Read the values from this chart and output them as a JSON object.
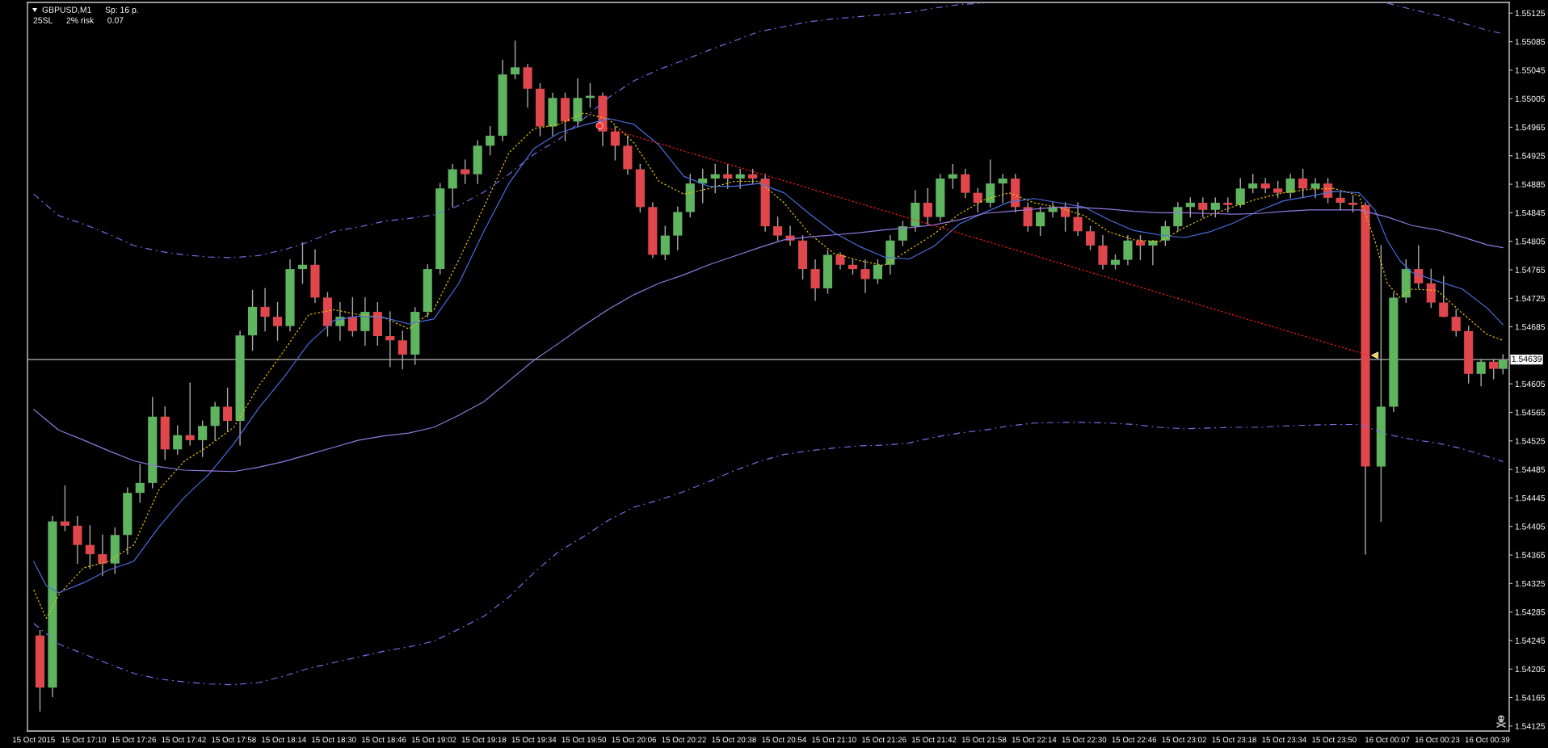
{
  "chart_data": {
    "type": "candlestick",
    "title": "GBPUSD,M1",
    "annotations": [
      "Sp: 16 p.",
      "25SL",
      "2% risk",
      "0.07"
    ],
    "color": "#a8a8a8",
    "x": [
      "2015-10-15T16:56",
      "2015-10-15T17:00",
      "2015-10-15T17:04",
      "2015-10-15T17:08",
      "2015-10-15T17:12",
      "2015-10-15T17:16",
      "2015-10-15T17:20",
      "2015-10-15T17:24",
      "2015-10-15T17:28",
      "2015-10-15T17:32",
      "2015-10-15T17:36",
      "2015-10-15T17:40",
      "2015-10-15T17:44",
      "2015-10-15T17:48",
      "2015-10-15T17:52",
      "2015-10-15T17:56",
      "2015-10-15T18:00",
      "2015-10-15T18:04",
      "2015-10-15T18:08",
      "2015-10-15T18:12",
      "2015-10-15T18:16",
      "2015-10-15T18:20",
      "2015-10-15T18:24",
      "2015-10-15T18:28",
      "2015-10-15T18:32",
      "2015-10-15T18:36",
      "2015-10-15T18:40",
      "2015-10-15T18:44",
      "2015-10-15T18:48",
      "2015-10-15T18:52",
      "2015-10-15T18:56",
      "2015-10-15T19:00",
      "2015-10-15T19:04",
      "2015-10-15T19:08",
      "2015-10-15T19:12",
      "2015-10-15T19:16",
      "2015-10-15T19:20",
      "2015-10-15T19:24",
      "2015-10-15T19:28",
      "2015-10-15T19:32",
      "2015-10-15T19:36",
      "2015-10-15T19:40",
      "2015-10-15T19:44",
      "2015-10-15T19:48",
      "2015-10-15T19:52",
      "2015-10-15T19:56",
      "2015-10-15T20:00",
      "2015-10-15T20:04",
      "2015-10-15T20:08",
      "2015-10-15T20:12",
      "2015-10-15T20:16",
      "2015-10-15T20:20",
      "2015-10-15T20:24",
      "2015-10-15T20:28",
      "2015-10-15T20:32",
      "2015-10-15T20:36",
      "2015-10-15T20:40",
      "2015-10-15T20:44",
      "2015-10-15T20:48",
      "2015-10-15T20:52",
      "2015-10-15T20:56",
      "2015-10-15T21:00",
      "2015-10-15T21:04",
      "2015-10-15T21:08",
      "2015-10-15T21:12",
      "2015-10-15T21:16",
      "2015-10-15T21:20",
      "2015-10-15T21:24",
      "2015-10-15T21:28",
      "2015-10-15T21:32",
      "2015-10-15T21:36",
      "2015-10-15T21:40",
      "2015-10-15T21:44",
      "2015-10-15T21:48",
      "2015-10-15T21:52",
      "2015-10-15T21:56",
      "2015-10-15T22:00",
      "2015-10-15T22:04",
      "2015-10-15T22:08",
      "2015-10-15T22:12",
      "2015-10-15T22:16",
      "2015-10-15T22:20",
      "2015-10-15T22:24",
      "2015-10-15T22:28",
      "2015-10-15T22:32",
      "2015-10-15T22:36",
      "2015-10-15T22:40",
      "2015-10-15T22:44",
      "2015-10-15T22:48",
      "2015-10-15T22:52",
      "2015-10-15T22:56",
      "2015-10-15T23:00",
      "2015-10-15T23:04",
      "2015-10-15T23:08",
      "2015-10-15T23:12",
      "2015-10-15T23:16",
      "2015-10-15T23:20",
      "2015-10-15T23:24",
      "2015-10-15T23:28",
      "2015-10-15T23:32",
      "2015-10-15T23:36",
      "2015-10-15T23:40",
      "2015-10-15T23:44",
      "2015-10-15T23:48",
      "2015-10-15T23:52",
      "2015-10-15T23:56",
      "2015-10-16T00:00",
      "2015-10-16T00:05",
      "2015-10-16T00:09",
      "2015-10-16T00:13",
      "2015-10-16T00:17",
      "2015-10-16T00:21",
      "2015-10-16T00:25",
      "2015-10-16T00:29",
      "2015-10-16T00:33",
      "2015-10-16T00:37",
      "2015-10-16T00:41",
      "2015-10-16T00:44"
    ],
    "ohlc": [
      [
        1.54252,
        1.54259,
        1.54146,
        1.54179
      ],
      [
        1.54179,
        1.54419,
        1.54166,
        1.54412
      ],
      [
        1.54412,
        1.54462,
        1.54399,
        1.54406
      ],
      [
        1.54406,
        1.54419,
        1.54353,
        1.54379
      ],
      [
        1.54379,
        1.54406,
        1.54346,
        1.54366
      ],
      [
        1.54366,
        1.54393,
        1.54336,
        1.54353
      ],
      [
        1.54353,
        1.54403,
        1.54339,
        1.54393
      ],
      [
        1.54393,
        1.54459,
        1.54366,
        1.54452
      ],
      [
        1.54452,
        1.54492,
        1.54439,
        1.54466
      ],
      [
        1.54466,
        1.54586,
        1.54459,
        1.54559
      ],
      [
        1.54559,
        1.54573,
        1.54499,
        1.54513
      ],
      [
        1.54513,
        1.54546,
        1.54506,
        1.54533
      ],
      [
        1.54533,
        1.54606,
        1.54519,
        1.54526
      ],
      [
        1.54526,
        1.54553,
        1.54503,
        1.54546
      ],
      [
        1.54546,
        1.54579,
        1.54526,
        1.54573
      ],
      [
        1.54573,
        1.54599,
        1.54539,
        1.54553
      ],
      [
        1.54553,
        1.54679,
        1.54519,
        1.54673
      ],
      [
        1.54673,
        1.54736,
        1.54652,
        1.54713
      ],
      [
        1.54713,
        1.54739,
        1.54679,
        1.54699
      ],
      [
        1.54699,
        1.54719,
        1.54666,
        1.54686
      ],
      [
        1.54686,
        1.54779,
        1.54679,
        1.54766
      ],
      [
        1.54766,
        1.54803,
        1.54746,
        1.54772
      ],
      [
        1.54772,
        1.54793,
        1.54719,
        1.54726
      ],
      [
        1.54726,
        1.54733,
        1.54672,
        1.54686
      ],
      [
        1.54686,
        1.54719,
        1.54666,
        1.54699
      ],
      [
        1.54699,
        1.54726,
        1.54672,
        1.54679
      ],
      [
        1.54679,
        1.54726,
        1.54659,
        1.54706
      ],
      [
        1.54706,
        1.54719,
        1.54659,
        1.54672
      ],
      [
        1.54672,
        1.54706,
        1.54629,
        1.54666
      ],
      [
        1.54666,
        1.54679,
        1.54626,
        1.54646
      ],
      [
        1.54646,
        1.54712,
        1.54632,
        1.54706
      ],
      [
        1.54706,
        1.54772,
        1.54699,
        1.54766
      ],
      [
        1.54766,
        1.54886,
        1.54759,
        1.54879
      ],
      [
        1.54879,
        1.54913,
        1.54853,
        1.54906
      ],
      [
        1.54906,
        1.54919,
        1.54886,
        1.54899
      ],
      [
        1.54899,
        1.54946,
        1.54886,
        1.54939
      ],
      [
        1.54939,
        1.54966,
        1.54926,
        1.54953
      ],
      [
        1.54953,
        1.55059,
        1.54946,
        1.55039
      ],
      [
        1.55039,
        1.55086,
        1.55033,
        1.55049
      ],
      [
        1.55049,
        1.55053,
        1.54993,
        1.55019
      ],
      [
        1.55019,
        1.55026,
        1.54953,
        1.54966
      ],
      [
        1.54966,
        1.55013,
        1.54953,
        1.55006
      ],
      [
        1.55006,
        1.55013,
        1.54946,
        1.54973
      ],
      [
        1.54973,
        1.55033,
        1.54966,
        1.55006
      ],
      [
        1.55006,
        1.55026,
        1.54993,
        1.55009
      ],
      [
        1.55009,
        1.55013,
        1.54939,
        1.54959
      ],
      [
        1.54959,
        1.54966,
        1.54919,
        1.54939
      ],
      [
        1.54939,
        1.54953,
        1.54899,
        1.54906
      ],
      [
        1.54906,
        1.54913,
        1.54846,
        1.54853
      ],
      [
        1.54853,
        1.54859,
        1.54782,
        1.54786
      ],
      [
        1.54786,
        1.54826,
        1.54779,
        1.54813
      ],
      [
        1.54813,
        1.54853,
        1.54793,
        1.54846
      ],
      [
        1.54846,
        1.54899,
        1.54839,
        1.54886
      ],
      [
        1.54886,
        1.54906,
        1.54859,
        1.54893
      ],
      [
        1.54893,
        1.54913,
        1.54873,
        1.54899
      ],
      [
        1.54899,
        1.54913,
        1.54879,
        1.54893
      ],
      [
        1.54893,
        1.54906,
        1.54879,
        1.54899
      ],
      [
        1.54899,
        1.54906,
        1.54886,
        1.54893
      ],
      [
        1.54893,
        1.54899,
        1.54819,
        1.54826
      ],
      [
        1.54826,
        1.54839,
        1.54806,
        1.54813
      ],
      [
        1.54813,
        1.54826,
        1.54799,
        1.54806
      ],
      [
        1.54806,
        1.54813,
        1.54752,
        1.54766
      ],
      [
        1.54766,
        1.54779,
        1.54722,
        1.54739
      ],
      [
        1.54739,
        1.54792,
        1.54732,
        1.54786
      ],
      [
        1.54786,
        1.54789,
        1.54766,
        1.54772
      ],
      [
        1.54772,
        1.54779,
        1.54759,
        1.54766
      ],
      [
        1.54766,
        1.54779,
        1.54733,
        1.54752
      ],
      [
        1.54752,
        1.54779,
        1.54746,
        1.54772
      ],
      [
        1.54772,
        1.54813,
        1.54759,
        1.54806
      ],
      [
        1.54806,
        1.54833,
        1.54799,
        1.54826
      ],
      [
        1.54826,
        1.54876,
        1.54819,
        1.54859
      ],
      [
        1.54859,
        1.54879,
        1.54829,
        1.54839
      ],
      [
        1.54839,
        1.54899,
        1.54833,
        1.54893
      ],
      [
        1.54893,
        1.54913,
        1.54879,
        1.54899
      ],
      [
        1.54899,
        1.54906,
        1.54866,
        1.54873
      ],
      [
        1.54873,
        1.54879,
        1.54846,
        1.54859
      ],
      [
        1.54859,
        1.54919,
        1.54853,
        1.54886
      ],
      [
        1.54886,
        1.54899,
        1.54859,
        1.54893
      ],
      [
        1.54893,
        1.54899,
        1.54846,
        1.54853
      ],
      [
        1.54853,
        1.54859,
        1.54819,
        1.54826
      ],
      [
        1.54826,
        1.54853,
        1.54813,
        1.54846
      ],
      [
        1.54846,
        1.54859,
        1.54839,
        1.54853
      ],
      [
        1.54853,
        1.54859,
        1.54819,
        1.54839
      ],
      [
        1.54839,
        1.54859,
        1.54813,
        1.54819
      ],
      [
        1.54819,
        1.54826,
        1.54793,
        1.54799
      ],
      [
        1.54799,
        1.54813,
        1.54766,
        1.54772
      ],
      [
        1.54772,
        1.54786,
        1.54766,
        1.54779
      ],
      [
        1.54779,
        1.54813,
        1.54772,
        1.54806
      ],
      [
        1.54806,
        1.54813,
        1.54779,
        1.54799
      ],
      [
        1.54799,
        1.54806,
        1.54772,
        1.54806
      ],
      [
        1.54806,
        1.54833,
        1.54799,
        1.54826
      ],
      [
        1.54826,
        1.54859,
        1.54819,
        1.54853
      ],
      [
        1.54853,
        1.54866,
        1.54839,
        1.54859
      ],
      [
        1.54859,
        1.54866,
        1.54839,
        1.54849
      ],
      [
        1.54849,
        1.54866,
        1.54839,
        1.54859
      ],
      [
        1.54859,
        1.54866,
        1.54846,
        1.54856
      ],
      [
        1.54856,
        1.54893,
        1.54853,
        1.54879
      ],
      [
        1.54879,
        1.54899,
        1.54873,
        1.54886
      ],
      [
        1.54886,
        1.54893,
        1.54873,
        1.54879
      ],
      [
        1.54879,
        1.54889,
        1.54866,
        1.54873
      ],
      [
        1.54873,
        1.54899,
        1.54866,
        1.54893
      ],
      [
        1.54893,
        1.54906,
        1.54866,
        1.54879
      ],
      [
        1.54879,
        1.54893,
        1.54866,
        1.54886
      ],
      [
        1.54886,
        1.54893,
        1.54859,
        1.54866
      ],
      [
        1.54866,
        1.54873,
        1.54849,
        1.54859
      ],
      [
        1.54859,
        1.54869,
        1.54846,
        1.54856
      ],
      [
        1.54856,
        1.54859,
        1.54366,
        1.54489
      ],
      [
        1.54489,
        1.54799,
        1.54412,
        1.54573
      ],
      [
        1.54573,
        1.54733,
        1.54566,
        1.54726
      ],
      [
        1.54726,
        1.54779,
        1.54719,
        1.54766
      ],
      [
        1.54766,
        1.54799,
        1.54739,
        1.54746
      ],
      [
        1.54746,
        1.54766,
        1.54712,
        1.54719
      ],
      [
        1.54719,
        1.54756,
        1.54699,
        1.54699
      ],
      [
        1.54699,
        1.54709,
        1.54672,
        1.54679
      ],
      [
        1.54679,
        1.54686,
        1.54606,
        1.54619
      ],
      [
        1.54619,
        1.54639,
        1.54602,
        1.54636
      ],
      [
        1.54636,
        1.54639,
        1.54612,
        1.54626
      ],
      [
        1.54626,
        1.54646,
        1.54619,
        1.54639
      ]
    ],
    "colors": [
      "#e0474c",
      "#5fb45f",
      "#e0474c",
      "#e0474c",
      "#e0474c",
      "#e0474c",
      "#5fb45f",
      "#5fb45f",
      "#5fb45f",
      "#5fb45f",
      "#e0474c",
      "#5fb45f",
      "#e0474c",
      "#5fb45f",
      "#5fb45f",
      "#e0474c",
      "#5fb45f",
      "#5fb45f",
      "#e0474c",
      "#e0474c",
      "#5fb45f",
      "#5fb45f",
      "#e0474c",
      "#e0474c",
      "#5fb45f",
      "#e0474c",
      "#5fb45f",
      "#e0474c",
      "#e0474c",
      "#e0474c",
      "#5fb45f",
      "#5fb45f",
      "#5fb45f",
      "#5fb45f",
      "#e0474c",
      "#5fb45f",
      "#5fb45f",
      "#5fb45f",
      "#5fb45f",
      "#e0474c",
      "#e0474c",
      "#5fb45f",
      "#e0474c",
      "#5fb45f",
      "#5fb45f",
      "#e0474c",
      "#e0474c",
      "#e0474c",
      "#e0474c",
      "#e0474c",
      "#5fb45f",
      "#5fb45f",
      "#5fb45f",
      "#5fb45f",
      "#5fb45f",
      "#e0474c",
      "#5fb45f",
      "#e0474c",
      "#e0474c",
      "#e0474c",
      "#e0474c",
      "#e0474c",
      "#e0474c",
      "#5fb45f",
      "#e0474c",
      "#e0474c",
      "#e0474c",
      "#5fb45f",
      "#5fb45f",
      "#5fb45f",
      "#5fb45f",
      "#e0474c",
      "#5fb45f",
      "#5fb45f",
      "#e0474c",
      "#e0474c",
      "#5fb45f",
      "#5fb45f",
      "#e0474c",
      "#e0474c",
      "#5fb45f",
      "#5fb45f",
      "#e0474c",
      "#e0474c",
      "#e0474c",
      "#e0474c",
      "#5fb45f",
      "#5fb45f",
      "#e0474c",
      "#5fb45f",
      "#5fb45f",
      "#5fb45f",
      "#5fb45f",
      "#e0474c",
      "#5fb45f",
      "#e0474c",
      "#5fb45f",
      "#5fb45f",
      "#e0474c",
      "#e0474c",
      "#5fb45f",
      "#e0474c",
      "#5fb45f",
      "#e0474c",
      "#e0474c",
      "#e0474c",
      "#e0474c",
      "#5fb45f",
      "#5fb45f",
      "#5fb45f",
      "#e0474c",
      "#e0474c",
      "#e0474c",
      "#e0474c",
      "#e0474c",
      "#5fb45f",
      "#e0474c",
      "#5fb45f"
    ],
    "series": [
      {
        "type": "line",
        "color": "#e8c400",
        "line_style": "dotted",
        "x": [
          "2015-10-15T16:54",
          "2015-10-15T16:58",
          "2015-10-15T17:02",
          "2015-10-15T17:10",
          "2015-10-15T17:18",
          "2015-10-15T17:26",
          "2015-10-15T17:34",
          "2015-10-15T17:42",
          "2015-10-15T17:50",
          "2015-10-15T17:58",
          "2015-10-15T18:06",
          "2015-10-15T18:14",
          "2015-10-15T18:22",
          "2015-10-15T18:30",
          "2015-10-15T18:38",
          "2015-10-15T18:46",
          "2015-10-15T18:54",
          "2015-10-15T19:02",
          "2015-10-15T19:10",
          "2015-10-15T19:18",
          "2015-10-15T19:26",
          "2015-10-15T19:34",
          "2015-10-15T19:42",
          "2015-10-15T19:50",
          "2015-10-15T19:58",
          "2015-10-15T20:06",
          "2015-10-15T20:14",
          "2015-10-15T20:22",
          "2015-10-15T20:30",
          "2015-10-15T20:38",
          "2015-10-15T20:46",
          "2015-10-15T20:54",
          "2015-10-15T21:02",
          "2015-10-15T21:10",
          "2015-10-15T21:18",
          "2015-10-15T21:26",
          "2015-10-15T21:34",
          "2015-10-15T21:42",
          "2015-10-15T21:50",
          "2015-10-15T21:58",
          "2015-10-15T22:06",
          "2015-10-15T22:14",
          "2015-10-15T22:22",
          "2015-10-15T22:30",
          "2015-10-15T22:38",
          "2015-10-15T22:46",
          "2015-10-15T22:54",
          "2015-10-15T23:02",
          "2015-10-15T23:10",
          "2015-10-15T23:18",
          "2015-10-15T23:26",
          "2015-10-15T23:34",
          "2015-10-15T23:42",
          "2015-10-15T23:50",
          "2015-10-15T23:58",
          "2015-10-16T00:03",
          "2015-10-16T00:07",
          "2015-10-16T00:11",
          "2015-10-16T00:15",
          "2015-10-16T00:23",
          "2015-10-16T00:31",
          "2015-10-16T00:39",
          "2015-10-16T00:44"
        ],
        "values": [
          1.54316,
          1.54276,
          1.54309,
          1.54347,
          1.54356,
          1.54379,
          1.54456,
          1.54496,
          1.54518,
          1.54544,
          1.54602,
          1.54651,
          1.54702,
          1.54709,
          1.54702,
          1.54698,
          1.54682,
          1.54709,
          1.54779,
          1.54853,
          1.54929,
          1.54963,
          1.54969,
          1.54985,
          1.54976,
          1.54943,
          1.54889,
          1.54871,
          1.54879,
          1.54889,
          1.54889,
          1.54859,
          1.54816,
          1.54788,
          1.54778,
          1.54771,
          1.54793,
          1.54815,
          1.54843,
          1.54863,
          1.54873,
          1.54859,
          1.54852,
          1.54841,
          1.54818,
          1.54807,
          1.54804,
          1.54824,
          1.54841,
          1.54854,
          1.54865,
          1.54873,
          1.54878,
          1.54879,
          1.54869,
          1.54806,
          1.54746,
          1.54726,
          1.54738,
          1.54736,
          1.54704,
          1.54674,
          1.54666
        ]
      },
      {
        "type": "line",
        "color": "#4a6fe3",
        "x": [
          "2015-10-15T16:54",
          "2015-10-15T16:58",
          "2015-10-15T17:02",
          "2015-10-15T17:10",
          "2015-10-15T17:18",
          "2015-10-15T17:26",
          "2015-10-15T17:34",
          "2015-10-15T17:42",
          "2015-10-15T17:50",
          "2015-10-15T17:58",
          "2015-10-15T18:06",
          "2015-10-15T18:14",
          "2015-10-15T18:22",
          "2015-10-15T18:30",
          "2015-10-15T18:38",
          "2015-10-15T18:46",
          "2015-10-15T18:54",
          "2015-10-15T19:02",
          "2015-10-15T19:10",
          "2015-10-15T19:18",
          "2015-10-15T19:26",
          "2015-10-15T19:34",
          "2015-10-15T19:42",
          "2015-10-15T19:50",
          "2015-10-15T19:58",
          "2015-10-15T20:06",
          "2015-10-15T20:14",
          "2015-10-15T20:22",
          "2015-10-15T20:30",
          "2015-10-15T20:38",
          "2015-10-15T20:46",
          "2015-10-15T20:54",
          "2015-10-15T21:02",
          "2015-10-15T21:10",
          "2015-10-15T21:18",
          "2015-10-15T21:26",
          "2015-10-15T21:34",
          "2015-10-15T21:42",
          "2015-10-15T21:50",
          "2015-10-15T21:58",
          "2015-10-15T22:06",
          "2015-10-15T22:14",
          "2015-10-15T22:22",
          "2015-10-15T22:30",
          "2015-10-15T22:38",
          "2015-10-15T22:46",
          "2015-10-15T22:54",
          "2015-10-15T23:02",
          "2015-10-15T23:10",
          "2015-10-15T23:18",
          "2015-10-15T23:26",
          "2015-10-15T23:34",
          "2015-10-15T23:42",
          "2015-10-15T23:50",
          "2015-10-15T23:58",
          "2015-10-16T00:03",
          "2015-10-16T00:07",
          "2015-10-16T00:11",
          "2015-10-16T00:15",
          "2015-10-16T00:23",
          "2015-10-16T00:31",
          "2015-10-16T00:39",
          "2015-10-16T00:44"
        ],
        "values": [
          1.54356,
          1.54322,
          1.54312,
          1.54326,
          1.54344,
          1.54356,
          1.54404,
          1.54445,
          1.54478,
          1.54521,
          1.54571,
          1.54614,
          1.54662,
          1.54694,
          1.547,
          1.54698,
          1.54689,
          1.54696,
          1.54746,
          1.54819,
          1.54886,
          1.54935,
          1.54957,
          1.54968,
          1.54977,
          1.54969,
          1.5494,
          1.54896,
          1.54882,
          1.54882,
          1.54886,
          1.54873,
          1.54844,
          1.54817,
          1.54798,
          1.54783,
          1.5478,
          1.54798,
          1.54829,
          1.54845,
          1.5486,
          1.54865,
          1.54859,
          1.54853,
          1.54835,
          1.5482,
          1.54814,
          1.5481,
          1.54818,
          1.54831,
          1.54848,
          1.54862,
          1.54868,
          1.54875,
          1.54873,
          1.54849,
          1.54806,
          1.54778,
          1.54761,
          1.54749,
          1.54738,
          1.54711,
          1.54688
        ]
      },
      {
        "type": "line",
        "color": "#9678e0",
        "x": [
          "2015-10-15T16:54",
          "2015-10-15T17:02",
          "2015-10-15T17:10",
          "2015-10-15T17:18",
          "2015-10-15T17:26",
          "2015-10-15T17:34",
          "2015-10-15T17:42",
          "2015-10-15T17:50",
          "2015-10-15T17:58",
          "2015-10-15T18:06",
          "2015-10-15T18:14",
          "2015-10-15T18:22",
          "2015-10-15T18:30",
          "2015-10-15T18:38",
          "2015-10-15T18:46",
          "2015-10-15T18:54",
          "2015-10-15T19:02",
          "2015-10-15T19:10",
          "2015-10-15T19:18",
          "2015-10-15T19:26",
          "2015-10-15T19:34",
          "2015-10-15T19:42",
          "2015-10-15T19:50",
          "2015-10-15T19:58",
          "2015-10-15T20:06",
          "2015-10-15T20:14",
          "2015-10-15T20:22",
          "2015-10-15T20:30",
          "2015-10-15T20:38",
          "2015-10-15T20:46",
          "2015-10-15T20:54",
          "2015-10-15T21:02",
          "2015-10-15T21:10",
          "2015-10-15T21:18",
          "2015-10-15T21:26",
          "2015-10-15T21:34",
          "2015-10-15T21:42",
          "2015-10-15T21:50",
          "2015-10-15T21:58",
          "2015-10-15T22:06",
          "2015-10-15T22:14",
          "2015-10-15T22:22",
          "2015-10-15T22:30",
          "2015-10-15T22:38",
          "2015-10-15T22:46",
          "2015-10-15T22:54",
          "2015-10-15T23:02",
          "2015-10-15T23:10",
          "2015-10-15T23:18",
          "2015-10-15T23:26",
          "2015-10-15T23:34",
          "2015-10-15T23:42",
          "2015-10-15T23:50",
          "2015-10-15T23:58",
          "2015-10-16T00:07",
          "2015-10-16T00:15",
          "2015-10-16T00:23",
          "2015-10-16T00:31",
          "2015-10-16T00:39",
          "2015-10-16T00:44"
        ],
        "values": [
          1.54569,
          1.5454,
          1.54526,
          1.54511,
          1.54497,
          1.54489,
          1.54484,
          1.54483,
          1.54482,
          1.54488,
          1.54496,
          1.54506,
          1.54516,
          1.54526,
          1.54532,
          1.54536,
          1.54544,
          1.54561,
          1.5458,
          1.54609,
          1.54638,
          1.54662,
          1.54687,
          1.5471,
          1.5473,
          1.54746,
          1.54758,
          1.54772,
          1.54784,
          1.54796,
          1.54807,
          1.54811,
          1.54814,
          1.54817,
          1.54821,
          1.54824,
          1.54828,
          1.54835,
          1.54844,
          1.54847,
          1.5485,
          1.54853,
          1.54852,
          1.5485,
          1.54847,
          1.54845,
          1.54845,
          1.54844,
          1.54843,
          1.54844,
          1.54847,
          1.54849,
          1.54849,
          1.54849,
          1.54839,
          1.54827,
          1.54821,
          1.54811,
          1.548,
          1.54796
        ]
      },
      {
        "type": "line",
        "color": "#7d6ae6",
        "line_style": "dashed",
        "x": [
          "2015-10-15T16:54",
          "2015-10-15T17:02",
          "2015-10-15T17:10",
          "2015-10-15T17:18",
          "2015-10-15T17:26",
          "2015-10-15T17:34",
          "2015-10-15T17:42",
          "2015-10-15T17:50",
          "2015-10-15T17:58",
          "2015-10-15T18:06",
          "2015-10-15T18:14",
          "2015-10-15T18:22",
          "2015-10-15T18:30",
          "2015-10-15T18:38",
          "2015-10-15T18:46",
          "2015-10-15T18:54",
          "2015-10-15T19:02",
          "2015-10-15T19:10",
          "2015-10-15T19:18",
          "2015-10-15T19:26",
          "2015-10-15T19:34",
          "2015-10-15T19:42",
          "2015-10-15T19:50",
          "2015-10-15T19:58",
          "2015-10-15T20:06",
          "2015-10-15T20:14",
          "2015-10-15T20:22",
          "2015-10-15T20:30",
          "2015-10-15T20:38",
          "2015-10-15T20:46",
          "2015-10-15T20:54",
          "2015-10-15T21:02",
          "2015-10-15T21:10",
          "2015-10-15T21:18",
          "2015-10-15T21:26",
          "2015-10-15T21:34",
          "2015-10-15T21:42",
          "2015-10-15T21:50",
          "2015-10-15T21:58",
          "2015-10-15T22:06",
          "2015-10-15T22:14",
          "2015-10-15T22:22",
          "2015-10-15T22:30",
          "2015-10-15T22:38",
          "2015-10-15T22:46",
          "2015-10-15T22:54",
          "2015-10-15T23:02",
          "2015-10-15T23:10",
          "2015-10-15T23:18",
          "2015-10-15T23:26",
          "2015-10-15T23:34",
          "2015-10-15T23:42",
          "2015-10-15T23:50",
          "2015-10-15T23:58",
          "2015-10-16T00:07",
          "2015-10-16T00:15",
          "2015-10-16T00:23",
          "2015-10-16T00:31",
          "2015-10-16T00:39",
          "2015-10-16T00:44"
        ],
        "values": [
          1.54871,
          1.54841,
          1.54829,
          1.54815,
          1.54799,
          1.54791,
          1.54786,
          1.54783,
          1.54782,
          1.54785,
          1.54793,
          1.54804,
          1.54819,
          1.54825,
          1.54833,
          1.54837,
          1.54842,
          1.54855,
          1.54874,
          1.54899,
          1.54927,
          1.54948,
          1.54977,
          1.55007,
          1.5503,
          1.55046,
          1.55059,
          1.55073,
          1.55086,
          1.55099,
          1.55106,
          1.55113,
          1.55117,
          1.5512,
          1.55123,
          1.55126,
          1.55132,
          1.55137,
          1.55139,
          null,
          null,
          null,
          null,
          null,
          null,
          null,
          null,
          null,
          null,
          null,
          null,
          null,
          null,
          null,
          1.55139,
          1.5513,
          1.55122,
          1.55111,
          1.55101,
          1.55096
        ]
      },
      {
        "type": "line",
        "color": "#7d6ae6",
        "line_style": "dashed",
        "x": [
          "2015-10-15T16:54",
          "2015-10-15T17:02",
          "2015-10-15T17:10",
          "2015-10-15T17:18",
          "2015-10-15T17:26",
          "2015-10-15T17:34",
          "2015-10-15T17:42",
          "2015-10-15T17:50",
          "2015-10-15T17:58",
          "2015-10-15T18:06",
          "2015-10-15T18:14",
          "2015-10-15T18:22",
          "2015-10-15T18:30",
          "2015-10-15T18:38",
          "2015-10-15T18:46",
          "2015-10-15T18:54",
          "2015-10-15T19:02",
          "2015-10-15T19:10",
          "2015-10-15T19:18",
          "2015-10-15T19:26",
          "2015-10-15T19:34",
          "2015-10-15T19:42",
          "2015-10-15T19:50",
          "2015-10-15T19:58",
          "2015-10-15T20:06",
          "2015-10-15T20:14",
          "2015-10-15T20:22",
          "2015-10-15T20:30",
          "2015-10-15T20:38",
          "2015-10-15T20:46",
          "2015-10-15T20:54",
          "2015-10-15T21:02",
          "2015-10-15T21:10",
          "2015-10-15T21:18",
          "2015-10-15T21:26",
          "2015-10-15T21:34",
          "2015-10-15T21:42",
          "2015-10-15T21:50",
          "2015-10-15T21:58",
          "2015-10-15T22:06",
          "2015-10-15T22:14",
          "2015-10-15T22:22",
          "2015-10-15T22:30",
          "2015-10-15T22:38",
          "2015-10-15T22:46",
          "2015-10-15T22:54",
          "2015-10-15T23:02",
          "2015-10-15T23:10",
          "2015-10-15T23:18",
          "2015-10-15T23:26",
          "2015-10-15T23:34",
          "2015-10-15T23:42",
          "2015-10-15T23:50",
          "2015-10-15T23:58",
          "2015-10-16T00:07",
          "2015-10-16T00:15",
          "2015-10-16T00:23",
          "2015-10-16T00:31",
          "2015-10-16T00:39",
          "2015-10-16T00:44"
        ],
        "values": [
          1.54269,
          1.5424,
          1.54226,
          1.54212,
          1.54199,
          1.54191,
          1.54187,
          1.54184,
          1.54183,
          1.54186,
          1.54195,
          1.54206,
          1.54214,
          1.54222,
          1.5423,
          1.54236,
          1.54244,
          1.54261,
          1.54279,
          1.54306,
          1.5434,
          1.5437,
          1.54391,
          1.54414,
          1.54432,
          1.54442,
          1.54454,
          1.54468,
          1.54483,
          1.54496,
          1.54506,
          1.54511,
          1.54515,
          1.54518,
          1.54519,
          1.54522,
          1.5453,
          1.54536,
          1.5454,
          1.54546,
          1.5455,
          1.54551,
          1.54551,
          1.5455,
          1.54548,
          1.54544,
          1.54542,
          1.54543,
          1.54544,
          1.54544,
          1.54546,
          1.54547,
          1.54548,
          1.54548,
          1.54534,
          1.54527,
          1.54522,
          1.54514,
          1.54503,
          1.54496
        ]
      },
      {
        "type": "line",
        "color": "#ff1a1a",
        "line_style": "dotted",
        "x": [
          "2015-10-15T19:55",
          "2015-10-16T00:01"
        ],
        "values": [
          1.54967,
          1.54645
        ]
      },
      {
        "type": "scatter",
        "color": "#ff2a2a",
        "marker": "circle",
        "x": [
          "2015-10-15T19:55"
        ],
        "values": [
          1.54967
        ]
      },
      {
        "type": "scatter",
        "color": "#ffcc33",
        "marker": "triangle",
        "x": [
          "2015-10-16T00:03"
        ],
        "values": [
          1.54645
        ]
      }
    ],
    "xlim": [
      "2015-10-15T16:52",
      "2015-10-16T00:46"
    ],
    "xticks": [
      {
        "value": "2015-10-15T16:54",
        "label": "15 Oct 2015"
      },
      {
        "value": "2015-10-15T17:10",
        "label": "15 Oct 17:10"
      },
      {
        "value": "2015-10-15T17:26",
        "label": "15 Oct 17:26"
      },
      {
        "value": "2015-10-15T17:42",
        "label": "15 Oct 17:42"
      },
      {
        "value": "2015-10-15T17:58",
        "label": "15 Oct 17:58"
      },
      {
        "value": "2015-10-15T18:14",
        "label": "15 Oct 18:14"
      },
      {
        "value": "2015-10-15T18:30",
        "label": "15 Oct 18:30"
      },
      {
        "value": "2015-10-15T18:46",
        "label": "15 Oct 18:46"
      },
      {
        "value": "2015-10-15T19:02",
        "label": "15 Oct 19:02"
      },
      {
        "value": "2015-10-15T19:18",
        "label": "15 Oct 19:18"
      },
      {
        "value": "2015-10-15T19:34",
        "label": "15 Oct 19:34"
      },
      {
        "value": "2015-10-15T19:50",
        "label": "15 Oct 19:50"
      },
      {
        "value": "2015-10-15T20:06",
        "label": "15 Oct 20:06"
      },
      {
        "value": "2015-10-15T20:22",
        "label": "15 Oct 20:22"
      },
      {
        "value": "2015-10-15T20:38",
        "label": "15 Oct 20:38"
      },
      {
        "value": "2015-10-15T20:54",
        "label": "15 Oct 20:54"
      },
      {
        "value": "2015-10-15T21:10",
        "label": "15 Oct 21:10"
      },
      {
        "value": "2015-10-15T21:26",
        "label": "15 Oct 21:26"
      },
      {
        "value": "2015-10-15T21:42",
        "label": "15 Oct 21:42"
      },
      {
        "value": "2015-10-15T21:58",
        "label": "15 Oct 21:58"
      },
      {
        "value": "2015-10-15T22:14",
        "label": "15 Oct 22:14"
      },
      {
        "value": "2015-10-15T22:30",
        "label": "15 Oct 22:30"
      },
      {
        "value": "2015-10-15T22:46",
        "label": "15 Oct 22:46"
      },
      {
        "value": "2015-10-15T23:02",
        "label": "15 Oct 23:02"
      },
      {
        "value": "2015-10-15T23:18",
        "label": "15 Oct 23:18"
      },
      {
        "value": "2015-10-15T23:34",
        "label": "15 Oct 23:34"
      },
      {
        "value": "2015-10-15T23:50",
        "label": "15 Oct 23:50"
      },
      {
        "value": "2015-10-16T00:07",
        "label": "16 Oct 00:07"
      },
      {
        "value": "2015-10-16T00:23",
        "label": "16 Oct 00:23"
      },
      {
        "value": "2015-10-16T00:39",
        "label": "16 Oct 00:39"
      }
    ],
    "ylim": [
      1.54118,
      1.5514
    ],
    "yticks": [
      1.55125,
      1.55085,
      1.55045,
      1.55005,
      1.54965,
      1.54925,
      1.54885,
      1.54845,
      1.54805,
      1.54765,
      1.54725,
      1.54685,
      {
        "value": 1.54645,
        "label": null
      },
      1.54605,
      1.54565,
      1.54525,
      1.54485,
      1.54445,
      1.54405,
      1.54365,
      1.54325,
      1.54285,
      1.54245,
      1.54205,
      1.54165,
      1.54125
    ],
    "ref_lines": [
      {
        "axis": "y",
        "value": 1.54639,
        "label": "1.54639",
        "color": "#b4b4b4"
      }
    ]
  }
}
